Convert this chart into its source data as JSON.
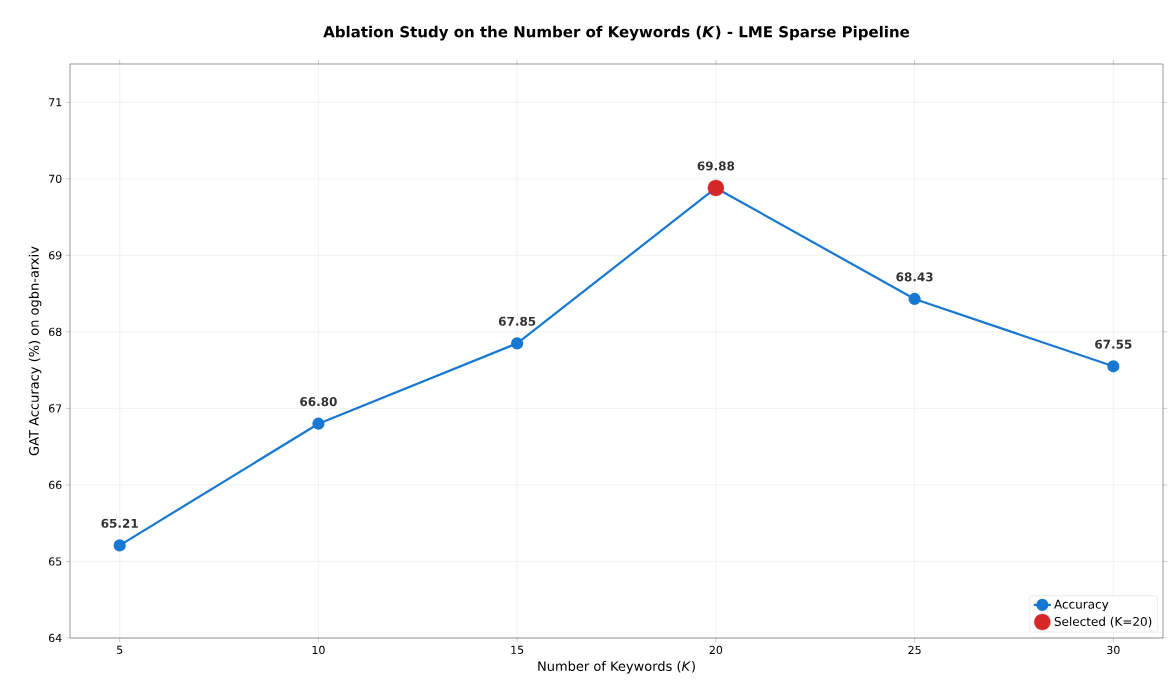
{
  "chart_data": {
    "type": "line",
    "title": "Ablation Study on the Number of Keywords (*K*) - LME Sparse Pipeline",
    "xlabel": "Number of Keywords (*K*)",
    "ylabel": "GAT Accuracy (%) on ogbn-arxiv",
    "x": [
      5,
      10,
      15,
      20,
      25,
      30
    ],
    "series": [
      {
        "name": "Accuracy",
        "color": "#1778d2",
        "values": [
          65.21,
          66.8,
          67.85,
          69.88,
          68.43,
          67.55
        ],
        "value_labels": [
          "65.21",
          "66.80",
          "67.85",
          "69.88",
          "68.43",
          "67.55"
        ]
      },
      {
        "name": "Selected (K=20)",
        "type": "scatter",
        "color": "#d62728",
        "x": [
          20
        ],
        "values": [
          69.88
        ],
        "value_labels": [
          null
        ]
      }
    ],
    "xlim": [
      3.75,
      31.25
    ],
    "xticks": [
      5,
      10,
      15,
      20,
      25,
      30
    ],
    "ylim": [
      64,
      71.5
    ],
    "yticks": [
      64,
      65,
      66,
      67,
      68,
      69,
      70,
      71
    ],
    "grid": true,
    "legend": "bottom right",
    "marker": "circle",
    "line_style": "solid"
  }
}
